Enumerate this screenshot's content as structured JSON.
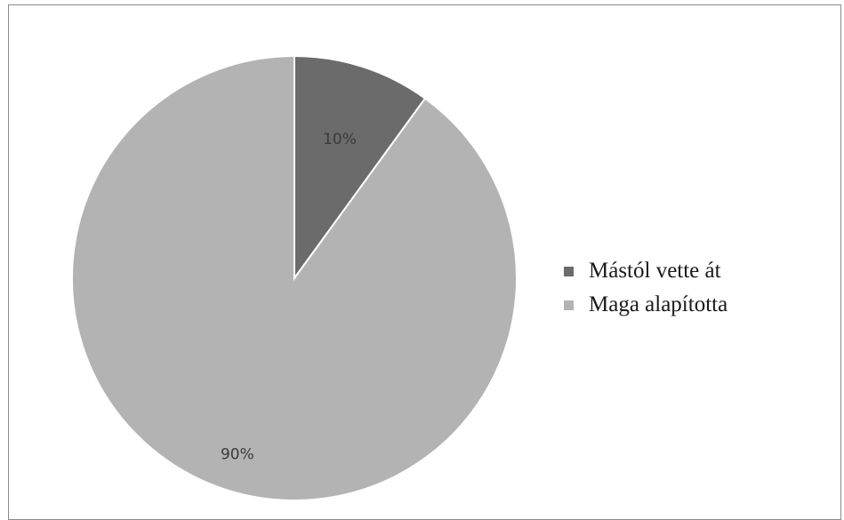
{
  "chart_data": {
    "type": "pie",
    "slices": [
      {
        "name": "Mástól vette át",
        "value": 10,
        "label": "10%",
        "color": "#6b6b6b"
      },
      {
        "name": "Maga alapította",
        "value": 90,
        "label": "90%",
        "color": "#b3b3b3"
      }
    ],
    "start_angle_deg": 0,
    "direction": "clockwise",
    "legend_placement": "right"
  }
}
